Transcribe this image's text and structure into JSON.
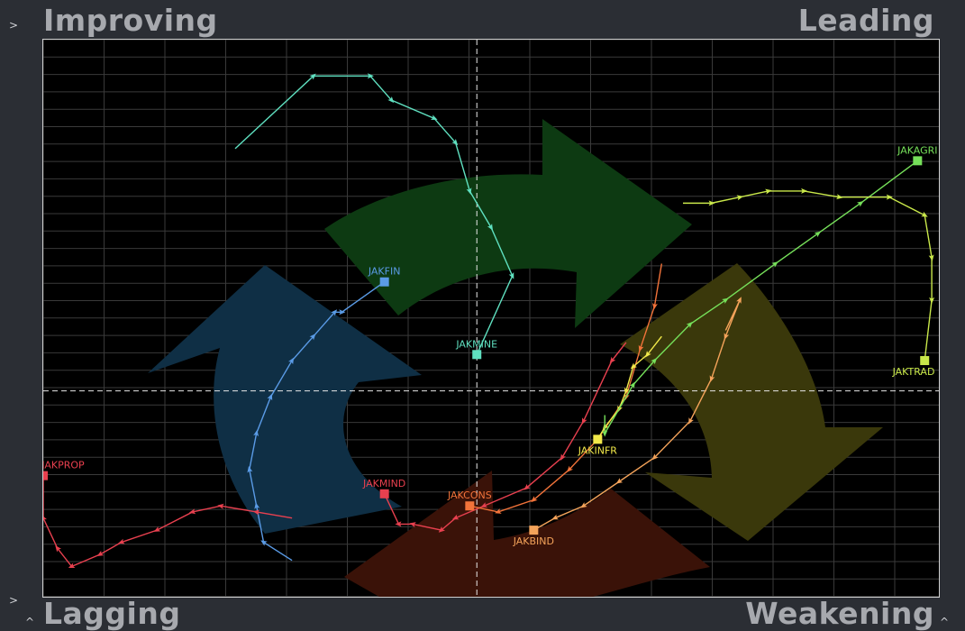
{
  "quadrants": {
    "improving": "Improving",
    "leading": "Leading",
    "lagging": "Lagging",
    "weakening": "Weakening"
  },
  "colors": {
    "background": "#2b2e34",
    "plot": "#000000",
    "grid": "#3a3a3a",
    "improving_arrow": "#0f2f45",
    "leading_arrow": "#0d3a12",
    "weakening_arrow": "#3a380b",
    "lagging_arrow": "#3a1208"
  },
  "chart_data": {
    "type": "scatter",
    "description_kind": "relative-rotation-graph",
    "x_range": [
      94,
      106.6
    ],
    "y_range": [
      92.3,
      101.5
    ],
    "center": [
      100.1,
      95.7
    ],
    "grid": true,
    "series": [
      {
        "name": "JAKMINE",
        "color": "#5fe0c0",
        "points": [
          [
            96.7,
            99.7
          ],
          [
            97.8,
            100.9
          ],
          [
            98.6,
            100.9
          ],
          [
            98.9,
            100.5
          ],
          [
            99.5,
            100.2
          ],
          [
            99.8,
            99.8
          ],
          [
            100.0,
            99.0
          ],
          [
            100.3,
            98.4
          ],
          [
            100.6,
            97.6
          ],
          [
            100.1,
            96.3
          ]
        ]
      },
      {
        "name": "JAKFIN",
        "color": "#5a9be6",
        "points": [
          [
            97.5,
            92.9
          ],
          [
            97.1,
            93.2
          ],
          [
            97.0,
            93.8
          ],
          [
            96.9,
            94.4
          ],
          [
            97.0,
            95.0
          ],
          [
            97.2,
            95.6
          ],
          [
            97.5,
            96.2
          ],
          [
            97.8,
            96.6
          ],
          [
            98.1,
            97.0
          ],
          [
            98.2,
            97.0
          ],
          [
            98.8,
            97.5
          ]
        ]
      },
      {
        "name": "JAKPROP",
        "color": "#e8404f",
        "points": [
          [
            97.5,
            93.6
          ],
          [
            97.0,
            93.7
          ],
          [
            96.5,
            93.8
          ],
          [
            96.1,
            93.7
          ],
          [
            95.6,
            93.4
          ],
          [
            95.1,
            93.2
          ],
          [
            94.8,
            93.0
          ],
          [
            94.4,
            92.8
          ],
          [
            94.2,
            93.1
          ],
          [
            94.0,
            93.6
          ],
          [
            94.0,
            94.3
          ]
        ]
      },
      {
        "name": "JAKMIND",
        "color": "#e8404f",
        "points": [
          [
            102.2,
            96.5
          ],
          [
            102.0,
            96.2
          ],
          [
            101.6,
            95.2
          ],
          [
            101.3,
            94.6
          ],
          [
            100.8,
            94.1
          ],
          [
            100.2,
            93.8
          ],
          [
            99.8,
            93.6
          ],
          [
            99.6,
            93.4
          ],
          [
            99.2,
            93.5
          ],
          [
            99.0,
            93.5
          ],
          [
            98.8,
            94.0
          ]
        ]
      },
      {
        "name": "JAKCONS",
        "color": "#f2733a",
        "points": [
          [
            102.7,
            97.8
          ],
          [
            102.6,
            97.1
          ],
          [
            102.4,
            96.4
          ],
          [
            102.2,
            95.6
          ],
          [
            101.8,
            94.9
          ],
          [
            101.4,
            94.4
          ],
          [
            100.9,
            93.9
          ],
          [
            100.4,
            93.7
          ],
          [
            100.0,
            93.8
          ]
        ]
      },
      {
        "name": "JAKBIND",
        "color": "#f4a35a",
        "points": [
          [
            103.6,
            96.7
          ],
          [
            103.8,
            97.2
          ],
          [
            103.6,
            96.6
          ],
          [
            103.4,
            95.9
          ],
          [
            103.1,
            95.2
          ],
          [
            102.6,
            94.6
          ],
          [
            102.1,
            94.2
          ],
          [
            101.6,
            93.8
          ],
          [
            101.2,
            93.6
          ],
          [
            100.9,
            93.4
          ]
        ]
      },
      {
        "name": "JAKINFR",
        "color": "#f2e94a",
        "points": [
          [
            102.7,
            96.6
          ],
          [
            102.5,
            96.3
          ],
          [
            102.3,
            96.1
          ],
          [
            102.2,
            95.7
          ],
          [
            102.1,
            95.4
          ],
          [
            101.9,
            95.1
          ],
          [
            101.8,
            94.9
          ]
        ]
      },
      {
        "name": "JAKAGRI",
        "color": "#76e05a",
        "points": [
          [
            101.9,
            95.3
          ],
          [
            101.9,
            95.0
          ],
          [
            102.3,
            95.8
          ],
          [
            102.6,
            96.2
          ],
          [
            103.1,
            96.8
          ],
          [
            103.6,
            97.2
          ],
          [
            104.3,
            97.8
          ],
          [
            104.9,
            98.3
          ],
          [
            105.5,
            98.8
          ],
          [
            106.3,
            99.5
          ]
        ]
      },
      {
        "name": "JAKTRAD",
        "color": "#c9e84a",
        "points": [
          [
            103.0,
            98.8
          ],
          [
            103.4,
            98.8
          ],
          [
            103.8,
            98.9
          ],
          [
            104.2,
            99.0
          ],
          [
            104.7,
            99.0
          ],
          [
            105.2,
            98.9
          ],
          [
            105.9,
            98.9
          ],
          [
            106.4,
            98.6
          ],
          [
            106.5,
            97.9
          ],
          [
            106.5,
            97.2
          ],
          [
            106.4,
            96.2
          ]
        ]
      }
    ]
  }
}
